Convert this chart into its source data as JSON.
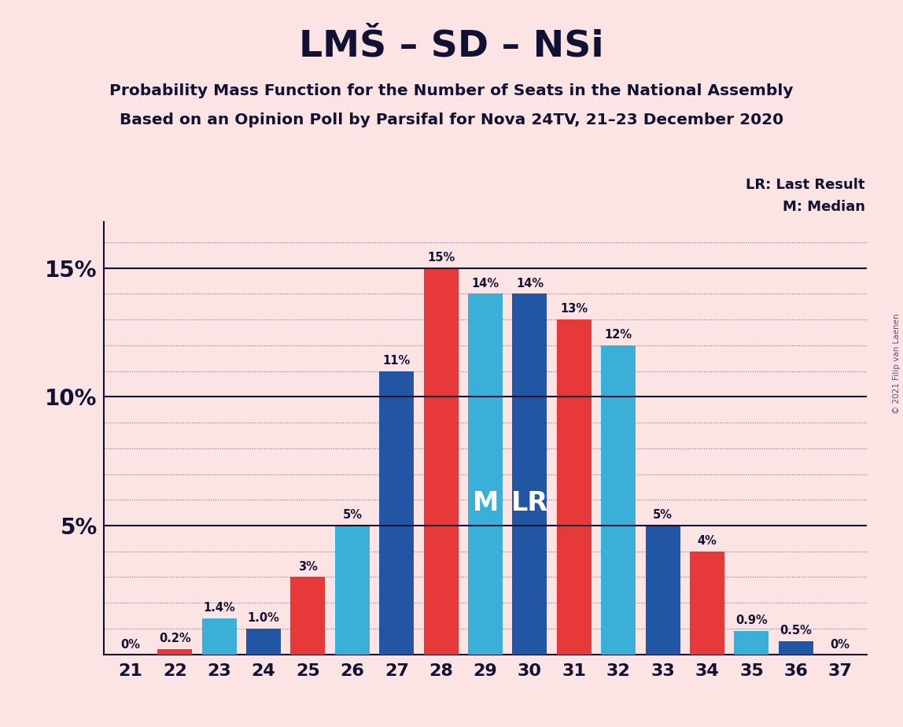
{
  "title": "LMŠ – SD – NSi",
  "subtitle1": "Probability Mass Function for the Number of Seats in the National Assembly",
  "subtitle2": "Based on an Opinion Poll by Parsifal for Nova 24TV, 21–23 December 2020",
  "copyright": "© 2021 Filip van Laenen",
  "lr_label": "LR: Last Result",
  "m_label": "M: Median",
  "seats": [
    21,
    22,
    23,
    24,
    25,
    26,
    27,
    28,
    29,
    30,
    31,
    32,
    33,
    34,
    35,
    36,
    37
  ],
  "values": [
    0.0,
    0.2,
    1.4,
    1.0,
    3.0,
    5.0,
    11.0,
    15.0,
    14.0,
    14.0,
    13.0,
    12.0,
    5.0,
    4.0,
    0.9,
    0.5,
    0.0
  ],
  "colors": [
    "#e8393a",
    "#e8393a",
    "#3ab0d8",
    "#2255a4",
    "#e8393a",
    "#3ab0d8",
    "#2255a4",
    "#e8393a",
    "#3ab0d8",
    "#2255a4",
    "#e8393a",
    "#3ab0d8",
    "#2255a4",
    "#e8393a",
    "#3ab0d8",
    "#2255a4",
    "#e8393a"
  ],
  "labels": [
    "0%",
    "0.2%",
    "1.4%",
    "1.0%",
    "3%",
    "5%",
    "11%",
    "15%",
    "14%",
    "14%",
    "13%",
    "12%",
    "5%",
    "4%",
    "0.9%",
    "0.5%",
    "0%"
  ],
  "median_seat": 29,
  "lr_seat": 30,
  "background_color": "#fce4e4",
  "ylim": [
    0,
    16.8
  ],
  "solid_lines": [
    5,
    10,
    15
  ],
  "ytick_positions": [
    5,
    10,
    15
  ],
  "ytick_labels": [
    "5%",
    "10%",
    "15%"
  ]
}
